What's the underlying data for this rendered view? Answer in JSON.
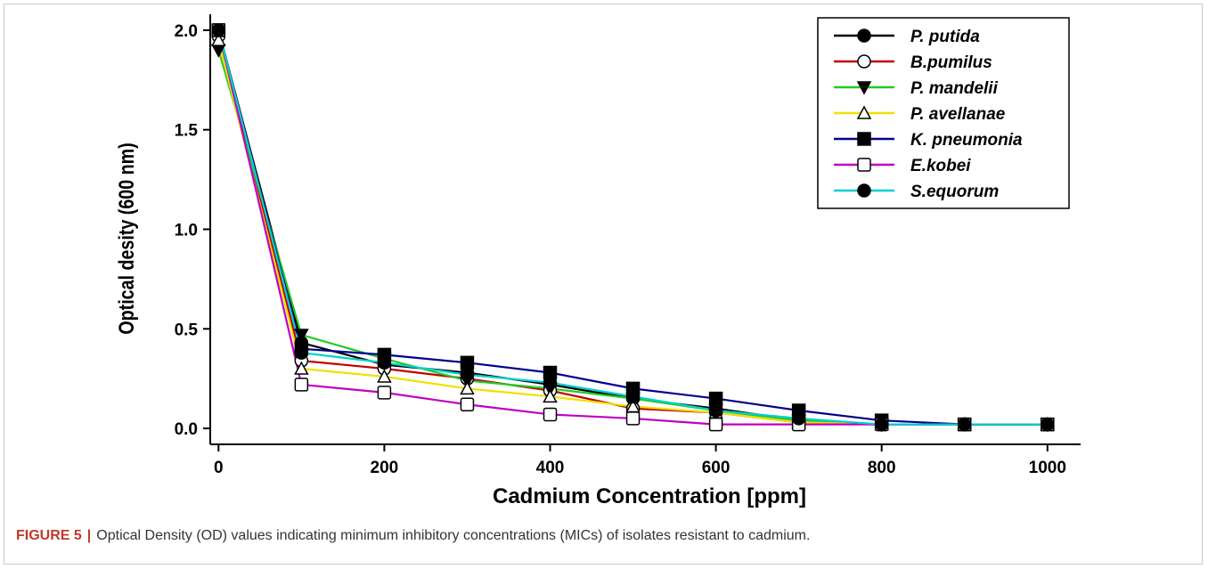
{
  "caption": {
    "label": "FIGURE 5",
    "separator": "|",
    "text": "Optical Density (OD) values indicating minimum inhibitory concentrations (MICs) of isolates resistant to cadmium."
  },
  "chart_data": {
    "type": "line",
    "title": "",
    "xlabel": "Cadmium Concentration [ppm]",
    "ylabel": "Optical desity (600 nm)",
    "xlim": [
      -10,
      1040
    ],
    "ylim": [
      -0.08,
      2.08
    ],
    "xticks": [
      0,
      200,
      400,
      600,
      800,
      1000
    ],
    "yticks": [
      0.0,
      0.5,
      1.0,
      1.5,
      2.0
    ],
    "xtick_labels": [
      "0",
      "200",
      "400",
      "600",
      "800",
      "1000"
    ],
    "ytick_labels": [
      "0.0",
      "0.5",
      "1.0",
      "1.5",
      "2.0"
    ],
    "grid": false,
    "legend_position": "top-right",
    "x": [
      0,
      100,
      200,
      300,
      400,
      500,
      600,
      700,
      800,
      900,
      1000
    ],
    "series": [
      {
        "name": "P. putida",
        "color": "#000000",
        "marker": "filled-circle",
        "values": [
          2.0,
          0.43,
          0.32,
          0.28,
          0.22,
          0.15,
          0.1,
          0.04,
          0.02,
          0.02,
          0.02
        ]
      },
      {
        "name": "B.pumilus",
        "color": "#c00000",
        "marker": "open-circle",
        "values": [
          1.97,
          0.34,
          0.3,
          0.25,
          0.19,
          0.1,
          0.08,
          0.03,
          0.02,
          0.02,
          0.02
        ]
      },
      {
        "name": "P. mandelii",
        "color": "#22cc22",
        "marker": "filled-triangle-down",
        "values": [
          1.9,
          0.47,
          0.35,
          0.24,
          0.2,
          0.15,
          0.09,
          0.04,
          0.02,
          0.02,
          0.02
        ]
      },
      {
        "name": "P. avellanae",
        "color": "#f0e000",
        "marker": "open-triangle-up",
        "values": [
          1.95,
          0.3,
          0.26,
          0.2,
          0.16,
          0.11,
          0.08,
          0.03,
          0.02,
          0.02,
          0.02
        ]
      },
      {
        "name": "K. pneumonia",
        "color": "#00008b",
        "marker": "filled-square",
        "values": [
          2.0,
          0.4,
          0.37,
          0.33,
          0.28,
          0.2,
          0.15,
          0.09,
          0.04,
          0.02,
          0.02
        ]
      },
      {
        "name": "E.kobei",
        "color": "#c000c0",
        "marker": "open-square",
        "values": [
          2.0,
          0.22,
          0.18,
          0.12,
          0.07,
          0.05,
          0.02,
          0.02,
          0.02,
          0.02,
          0.02
        ]
      },
      {
        "name": "S.equorum",
        "color": "#00d0d0",
        "marker": "filled-circle",
        "values": [
          2.0,
          0.38,
          0.33,
          0.27,
          0.23,
          0.16,
          0.09,
          0.05,
          0.02,
          0.02,
          0.02
        ]
      }
    ]
  }
}
